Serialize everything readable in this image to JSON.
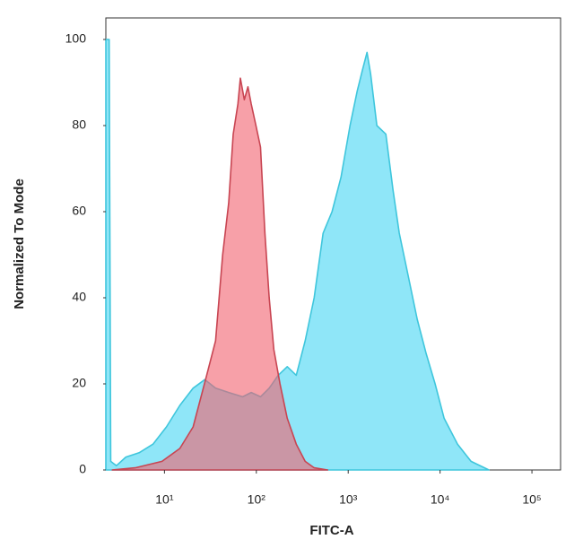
{
  "chart_data": {
    "type": "area",
    "x_label": "FITC-A",
    "y_label": "Normalized To Mode",
    "xscale": "log",
    "xlim": [
      2.3,
      205000
    ],
    "ylim": [
      0,
      105
    ],
    "xticks": [
      {
        "value": 10,
        "label": "10¹"
      },
      {
        "value": 100,
        "label": "10²"
      },
      {
        "value": 1000,
        "label": "10³"
      },
      {
        "value": 10000,
        "label": "10⁴"
      },
      {
        "value": 100000,
        "label": "10⁵"
      }
    ],
    "yticks": [
      0,
      20,
      40,
      60,
      80,
      100
    ],
    "series": [
      {
        "color": "#3fc6dc",
        "fill": "#8fe6f8",
        "x": [
          2.3,
          2.5,
          2.6,
          3.0,
          3.8,
          5.3,
          7.5,
          10.5,
          14.7,
          20.5,
          27.5,
          36,
          50,
          71,
          88,
          111,
          138,
          173,
          217,
          272,
          340,
          426,
          533,
          667,
          835,
          1047,
          1253,
          1433,
          1603,
          1754,
          2051,
          2570,
          3076,
          3597,
          4508,
          5640,
          7063,
          8830,
          11070,
          15490,
          21730,
          34040
        ],
        "values": [
          100,
          100,
          2,
          1,
          3,
          4,
          6,
          10,
          15,
          19,
          21,
          19,
          18,
          17,
          18,
          17,
          19,
          22,
          24,
          22,
          30,
          40,
          55,
          60,
          68,
          80,
          88,
          93,
          97,
          92,
          80,
          78,
          65,
          55,
          45,
          35,
          27,
          20,
          12,
          6,
          2,
          0
        ]
      },
      {
        "color": "#c84552",
        "fill": "#f2606e",
        "x": [
          2.7,
          4.8,
          9.4,
          14.7,
          20.5,
          28.8,
          36,
          43,
          50,
          56,
          63,
          67,
          74,
          81,
          88,
          99,
          111,
          124,
          138,
          155,
          181,
          217,
          272,
          340,
          426,
          597
        ],
        "values": [
          0,
          0.5,
          2,
          5,
          10,
          22,
          30,
          50,
          62,
          78,
          85,
          91,
          86,
          89,
          85,
          80,
          75,
          55,
          40,
          28,
          20,
          12,
          6,
          2,
          0.5,
          0
        ]
      }
    ]
  }
}
